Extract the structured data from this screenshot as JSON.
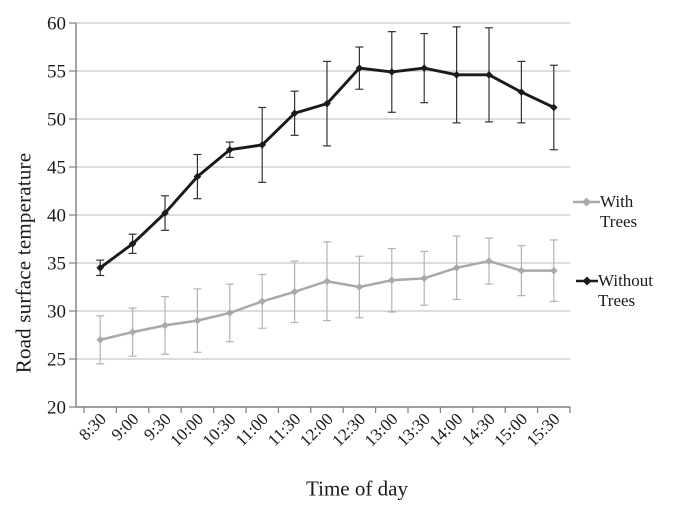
{
  "chart_data": {
    "type": "line",
    "title": "",
    "xlabel": "Time of day",
    "ylabel": "Road surface temperature",
    "categories": [
      "8:30",
      "9:00",
      "9:30",
      "10:00",
      "10:30",
      "11:00",
      "11:30",
      "12:00",
      "12:30",
      "13:00",
      "13:30",
      "14:00",
      "14:30",
      "15:00",
      "15:30"
    ],
    "ylim": [
      20,
      60
    ],
    "ytick_step": 5,
    "grid": true,
    "legend_position": "right",
    "error_bars": true,
    "series": [
      {
        "name": "With Trees",
        "color": "#a9a9a9",
        "error_color": "#b3b3b3",
        "marker": "diamond",
        "values": [
          27.0,
          27.8,
          28.5,
          29.0,
          29.8,
          31.0,
          32.0,
          33.1,
          32.5,
          33.2,
          33.4,
          34.5,
          35.2,
          34.2,
          34.2
        ],
        "errors": [
          2.5,
          2.5,
          3.0,
          3.3,
          3.0,
          2.8,
          3.2,
          4.1,
          3.2,
          3.3,
          2.8,
          3.3,
          2.4,
          2.6,
          3.2
        ]
      },
      {
        "name": "Without Trees",
        "color": "#1a1a1a",
        "error_color": "#333333",
        "marker": "diamond",
        "values": [
          34.5,
          37.0,
          40.2,
          44.0,
          46.8,
          47.3,
          50.6,
          51.6,
          55.3,
          54.9,
          55.3,
          54.6,
          54.6,
          52.8,
          51.2
        ],
        "errors": [
          0.8,
          1.0,
          1.8,
          2.3,
          0.8,
          3.9,
          2.3,
          4.4,
          2.2,
          4.2,
          3.6,
          5.0,
          4.9,
          3.2,
          4.4
        ]
      }
    ],
    "axis_color": "#7f7f7f",
    "gridline_color": "#c8c8c8",
    "text_color": "#1a1a1a"
  }
}
